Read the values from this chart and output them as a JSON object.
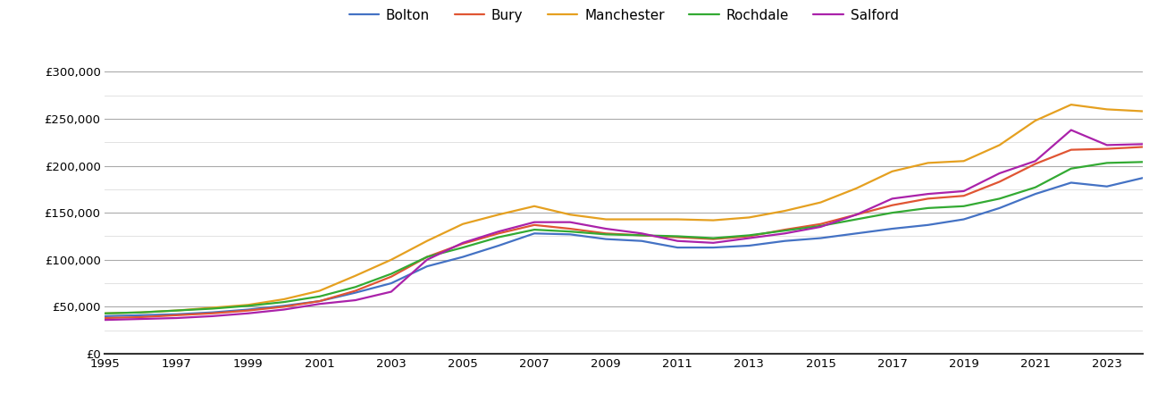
{
  "series": {
    "Bolton": {
      "color": "#4472C4",
      "years": [
        1995,
        1996,
        1997,
        1998,
        1999,
        2000,
        2001,
        2002,
        2003,
        2004,
        2005,
        2006,
        2007,
        2008,
        2009,
        2010,
        2011,
        2012,
        2013,
        2014,
        2015,
        2016,
        2017,
        2018,
        2019,
        2020,
        2021,
        2022,
        2023,
        2024
      ],
      "values": [
        40000,
        41000,
        42000,
        44000,
        47000,
        51000,
        56000,
        65000,
        75000,
        93000,
        103000,
        115000,
        128000,
        127000,
        122000,
        120000,
        113000,
        113000,
        115000,
        120000,
        123000,
        128000,
        133000,
        137000,
        143000,
        155000,
        170000,
        182000,
        178000,
        187000
      ]
    },
    "Bury": {
      "color": "#E05533",
      "years": [
        1995,
        1996,
        1997,
        1998,
        1999,
        2000,
        2001,
        2002,
        2003,
        2004,
        2005,
        2006,
        2007,
        2008,
        2009,
        2010,
        2011,
        2012,
        2013,
        2014,
        2015,
        2016,
        2017,
        2018,
        2019,
        2020,
        2021,
        2022,
        2023,
        2024
      ],
      "values": [
        38000,
        39000,
        41000,
        43000,
        46000,
        50000,
        56000,
        67000,
        82000,
        103000,
        117000,
        128000,
        137000,
        133000,
        128000,
        126000,
        124000,
        122000,
        125000,
        132000,
        138000,
        148000,
        158000,
        165000,
        168000,
        183000,
        202000,
        217000,
        218000,
        220000
      ]
    },
    "Manchester": {
      "color": "#E5A020",
      "years": [
        1995,
        1996,
        1997,
        1998,
        1999,
        2000,
        2001,
        2002,
        2003,
        2004,
        2005,
        2006,
        2007,
        2008,
        2009,
        2010,
        2011,
        2012,
        2013,
        2014,
        2015,
        2016,
        2017,
        2018,
        2019,
        2020,
        2021,
        2022,
        2023,
        2024
      ],
      "values": [
        43000,
        44000,
        46000,
        49000,
        52000,
        58000,
        67000,
        83000,
        100000,
        120000,
        138000,
        148000,
        157000,
        148000,
        143000,
        143000,
        143000,
        142000,
        145000,
        152000,
        161000,
        176000,
        194000,
        203000,
        205000,
        222000,
        248000,
        265000,
        260000,
        258000
      ]
    },
    "Rochdale": {
      "color": "#33AA33",
      "years": [
        1995,
        1996,
        1997,
        1998,
        1999,
        2000,
        2001,
        2002,
        2003,
        2004,
        2005,
        2006,
        2007,
        2008,
        2009,
        2010,
        2011,
        2012,
        2013,
        2014,
        2015,
        2016,
        2017,
        2018,
        2019,
        2020,
        2021,
        2022,
        2023,
        2024
      ],
      "values": [
        43000,
        44000,
        46000,
        48000,
        51000,
        55000,
        61000,
        71000,
        85000,
        103000,
        113000,
        124000,
        132000,
        130000,
        127000,
        126000,
        125000,
        123000,
        126000,
        131000,
        136000,
        143000,
        150000,
        155000,
        157000,
        165000,
        177000,
        197000,
        203000,
        204000
      ]
    },
    "Salford": {
      "color": "#AA22AA",
      "years": [
        1995,
        1996,
        1997,
        1998,
        1999,
        2000,
        2001,
        2002,
        2003,
        2004,
        2005,
        2006,
        2007,
        2008,
        2009,
        2010,
        2011,
        2012,
        2013,
        2014,
        2015,
        2016,
        2017,
        2018,
        2019,
        2020,
        2021,
        2022,
        2023,
        2024
      ],
      "values": [
        36000,
        37000,
        38000,
        40000,
        43000,
        47000,
        53000,
        57000,
        66000,
        100000,
        118000,
        130000,
        140000,
        140000,
        133000,
        128000,
        120000,
        118000,
        123000,
        128000,
        135000,
        148000,
        165000,
        170000,
        173000,
        192000,
        205000,
        238000,
        222000,
        223000
      ]
    }
  },
  "xlim": [
    1995,
    2024
  ],
  "ylim": [
    0,
    325000
  ],
  "major_yticks": [
    0,
    50000,
    100000,
    150000,
    200000,
    250000,
    300000
  ],
  "minor_yticks": [
    25000,
    75000,
    125000,
    175000,
    225000,
    275000
  ],
  "xticks": [
    1995,
    1997,
    1999,
    2001,
    2003,
    2005,
    2007,
    2009,
    2011,
    2013,
    2015,
    2017,
    2019,
    2021,
    2023
  ],
  "bg_color": "#ffffff",
  "major_grid_color": "#aaaaaa",
  "minor_grid_color": "#dddddd",
  "line_width": 1.6
}
